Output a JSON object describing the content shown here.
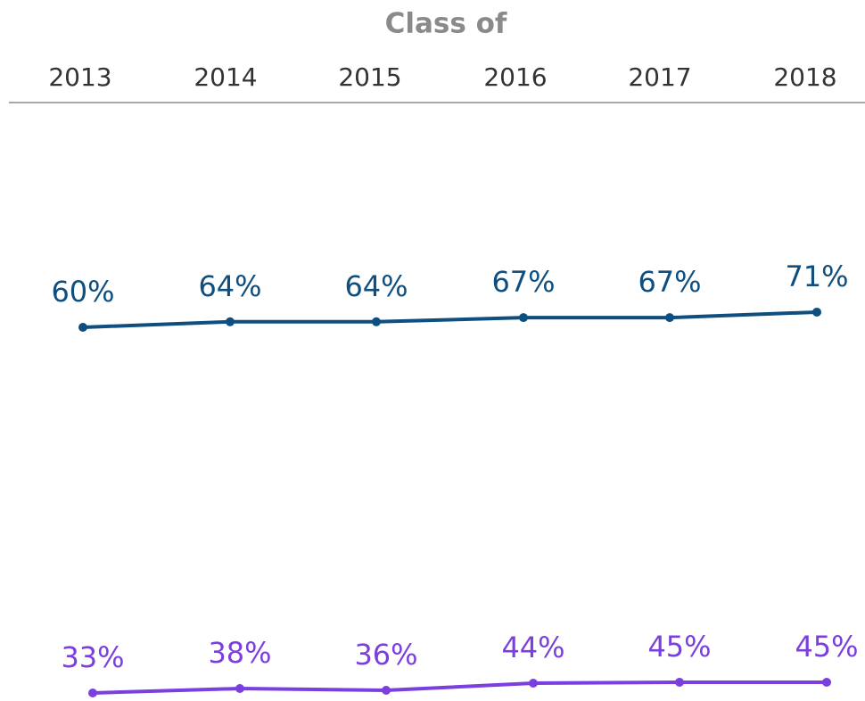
{
  "chart_data": {
    "type": "line",
    "title": "Class of",
    "categories": [
      "2013",
      "2014",
      "2015",
      "2016",
      "2017",
      "2018"
    ],
    "series": [
      {
        "color": "#0e4f80",
        "values": [
          60,
          64,
          64,
          67,
          67,
          71
        ],
        "value_labels": [
          "60%",
          "64%",
          "64%",
          "67%",
          "67%",
          "71%"
        ]
      },
      {
        "color": "#7b3fe0",
        "values": [
          33,
          38,
          36,
          44,
          45,
          45
        ],
        "value_labels": [
          "33%",
          "38%",
          "36%",
          "44%",
          "45%",
          "45%"
        ]
      }
    ]
  }
}
